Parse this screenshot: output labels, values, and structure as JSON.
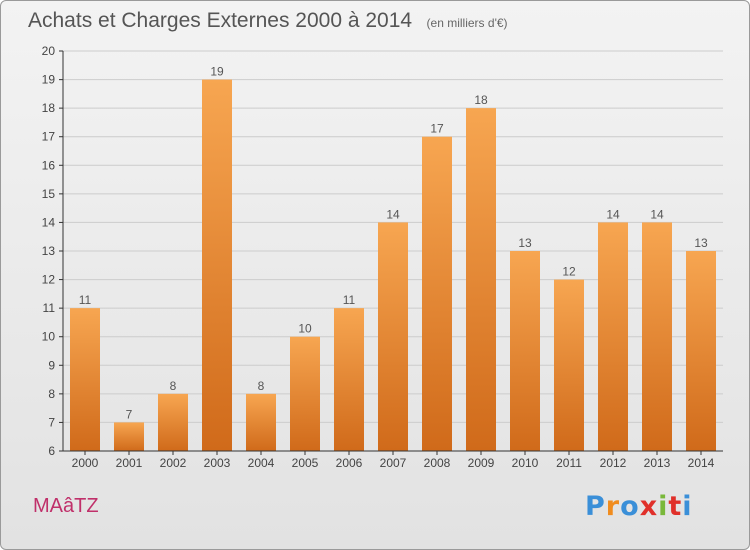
{
  "header": {
    "title": "Achats et Charges Externes 2000 à 2014",
    "unit": "(en milliers d'€)"
  },
  "footer": {
    "commune": "MAâTZ",
    "brand": "Proxiti",
    "brand_colors": [
      "#3a8fd8",
      "#f08c1e",
      "#3a8fd8",
      "#e0302a",
      "#79b83a",
      "#e0302a",
      "#3a8fd8"
    ]
  },
  "colors": {
    "bar_light": "#f7a651",
    "bar_dark": "#d06a1a",
    "axis": "#333333",
    "grid": "#cccccc"
  },
  "chart_data": {
    "type": "bar",
    "title": "Achats et Charges Externes 2000 à 2014",
    "subtitle": "(en milliers d'€)",
    "categories": [
      "2000",
      "2001",
      "2002",
      "2003",
      "2004",
      "2005",
      "2006",
      "2007",
      "2008",
      "2009",
      "2010",
      "2011",
      "2012",
      "2013",
      "2014"
    ],
    "values": [
      11,
      7,
      8,
      19,
      8,
      10,
      11,
      14,
      17,
      18,
      13,
      12,
      14,
      14,
      13
    ],
    "ylim": [
      6,
      20
    ],
    "yticks": [
      6,
      7,
      8,
      9,
      10,
      11,
      12,
      13,
      14,
      15,
      16,
      17,
      18,
      19,
      20
    ],
    "grid": true,
    "data_labels": true
  }
}
